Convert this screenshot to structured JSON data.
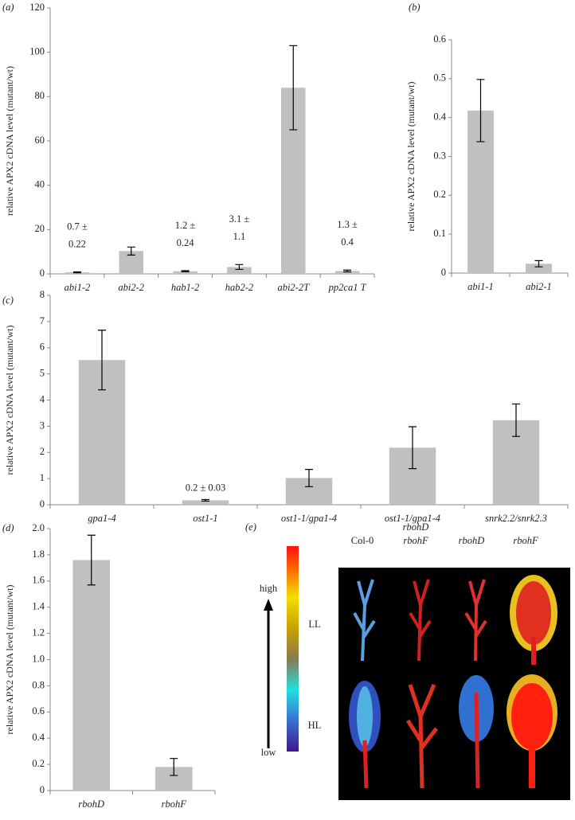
{
  "chart_data": [
    {
      "type": "bar",
      "panel": "(a)",
      "y_label": "relative APX2 cDNA level (mutant/wt)",
      "categories": [
        "abi1-2",
        "abi2-2",
        "hab1-2",
        "hab2-2",
        "abi2-2T",
        "pp2ca1 T"
      ],
      "values": [
        0.7,
        10.3,
        1.2,
        3.1,
        84,
        1.3
      ],
      "errors": [
        0.22,
        1.8,
        0.24,
        1.1,
        19,
        0.4
      ],
      "value_labels": [
        [
          "0.7 ±",
          "0.22"
        ],
        null,
        [
          "1.2 ±",
          "0.24"
        ],
        [
          "3.1 ±",
          "1.1"
        ],
        null,
        [
          "1.3 ±",
          "0.4"
        ]
      ],
      "color": "#c0c0c0",
      "ylim": [
        0,
        120
      ],
      "yticks": [
        0,
        20,
        40,
        60,
        80,
        100,
        120
      ]
    },
    {
      "type": "bar",
      "panel": "(b)",
      "y_label": "relative APX2 cDNA level (mutant/wt)",
      "categories": [
        "abi1-1",
        "abi2-1"
      ],
      "values": [
        0.418,
        0.024
      ],
      "errors": [
        0.08,
        0.008
      ],
      "color": "#c0c0c0",
      "ylim": [
        0,
        0.6
      ],
      "yticks": [
        0,
        0.1,
        0.2,
        0.3,
        0.4,
        0.5,
        0.6
      ]
    },
    {
      "type": "bar",
      "panel": "(c)",
      "y_label": "relative APX2 cDNA level (mutant/wt)",
      "categories": [
        "gpa1-4",
        "ost1-1",
        "ost1-1/gpa1-4",
        "ost1-1/gpa1-4",
        "snrk2.2/snrk2.3"
      ],
      "values": [
        5.53,
        0.17,
        1.02,
        2.18,
        3.23
      ],
      "errors": [
        1.14,
        0.03,
        0.33,
        0.8,
        0.62
      ],
      "value_labels": [
        null,
        [
          "0.2 ± 0.03"
        ],
        null,
        null,
        null
      ],
      "color": "#c0c0c0",
      "ylim": [
        0,
        8
      ],
      "yticks": [
        0,
        1,
        2,
        3,
        4,
        5,
        6,
        7,
        8
      ]
    },
    {
      "type": "bar",
      "panel": "(d)",
      "y_label": "relative APX2 cDNA level (mutant/wt)",
      "categories": [
        "rbohD",
        "rbohF"
      ],
      "values": [
        1.76,
        0.18
      ],
      "errors": [
        0.19,
        0.065
      ],
      "color": "#c0c0c0",
      "ylim": [
        0,
        2
      ],
      "yticks": [
        0,
        0.2,
        0.4,
        0.6,
        0.8,
        {
          "value": 1,
          "label": "1.0"
        },
        1.2,
        1.4,
        1.6,
        1.8,
        {
          "value": 2,
          "label": "2.0"
        }
      ]
    }
  ],
  "image_panel": {
    "panel": "(e)",
    "scale_high": "high",
    "scale_low": "low",
    "columns": [
      [
        "Col-0"
      ],
      [
        "rbohD",
        "rbohF"
      ],
      [
        "rbohD"
      ],
      [
        "rbohF"
      ]
    ],
    "rows": [
      "LL",
      "HL"
    ]
  }
}
